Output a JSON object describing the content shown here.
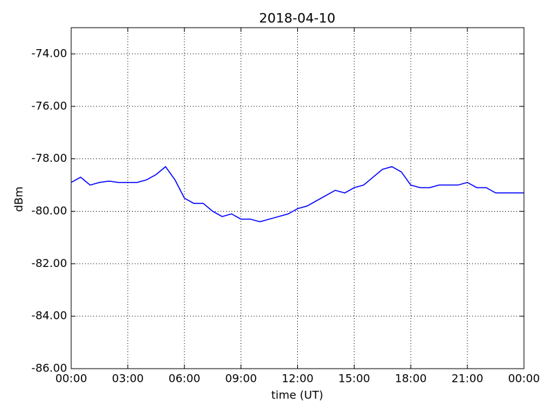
{
  "chart_data": {
    "type": "line",
    "title": "2018-04-10",
    "x_label": "time (UT)",
    "y_label": "dBm",
    "x": [
      0,
      0.5,
      1,
      1.5,
      2,
      2.5,
      3,
      3.5,
      4,
      4.5,
      5,
      5.5,
      6,
      6.5,
      7,
      7.5,
      8,
      8.5,
      9,
      9.5,
      10,
      10.5,
      11,
      11.5,
      12,
      12.5,
      13,
      13.5,
      14,
      14.5,
      15,
      15.5,
      16,
      16.5,
      17,
      17.5,
      18,
      18.5,
      19,
      19.5,
      20,
      20.5,
      21,
      21.5,
      22,
      22.5,
      23,
      23.5,
      24
    ],
    "series": [
      {
        "name": "dBm",
        "color": "#0000ff",
        "values": [
          -78.9,
          -78.7,
          -79.0,
          -78.9,
          -78.85,
          -78.9,
          -78.9,
          -78.9,
          -78.8,
          -78.6,
          -78.3,
          -78.8,
          -79.5,
          -79.7,
          -79.7,
          -80.0,
          -80.2,
          -80.1,
          -80.3,
          -80.3,
          -80.4,
          -80.3,
          -80.2,
          -80.1,
          -79.9,
          -79.8,
          -79.6,
          -79.4,
          -79.2,
          -79.3,
          -79.1,
          -79.0,
          -78.7,
          -78.4,
          -78.3,
          -78.5,
          -79.0,
          -79.1,
          -79.1,
          -79.0,
          -79.0,
          -79.0,
          -78.9,
          -79.1,
          -79.1,
          -79.3,
          -79.3,
          -79.3,
          -79.3
        ]
      }
    ],
    "xlim": [
      0,
      24
    ],
    "xticks": [
      {
        "value": 0,
        "label": "00:00"
      },
      {
        "value": 3,
        "label": "03:00"
      },
      {
        "value": 6,
        "label": "06:00"
      },
      {
        "value": 9,
        "label": "09:00"
      },
      {
        "value": 12,
        "label": "12:00"
      },
      {
        "value": 15,
        "label": "15:00"
      },
      {
        "value": 18,
        "label": "18:00"
      },
      {
        "value": 21,
        "label": "21:00"
      },
      {
        "value": 24,
        "label": "00:00"
      }
    ],
    "ylim": [
      -86,
      -73
    ],
    "yticks": [
      {
        "value": -86,
        "label": "-86.00"
      },
      {
        "value": -84,
        "label": "-84.00"
      },
      {
        "value": -82,
        "label": "-82.00"
      },
      {
        "value": -80,
        "label": "-80.00"
      },
      {
        "value": -78,
        "label": "-78.00"
      },
      {
        "value": -76,
        "label": "-76.00"
      },
      {
        "value": -74,
        "label": "-74.00"
      }
    ],
    "grid": true
  }
}
